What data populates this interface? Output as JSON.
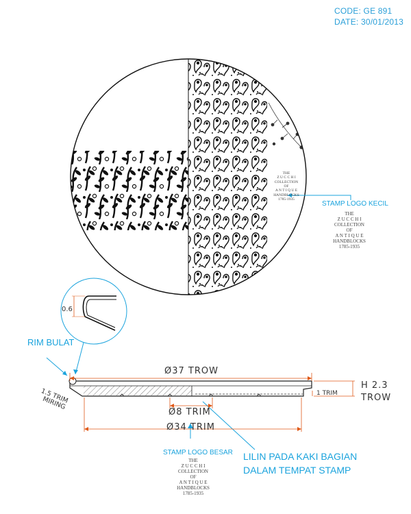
{
  "header": {
    "code": "CODE: GE 891",
    "date": "DATE: 30/01/2013"
  },
  "logo": {
    "the": "THE",
    "zucchi": "Z U C C H I",
    "collection": "COLLECTION",
    "of": "OF",
    "antique": "A N T I Q U E",
    "handblocks": "HANDBLOCKS",
    "years": "1785-1935"
  },
  "labels": {
    "stamp_logo_kecil": "STAMP LOGO KECIL",
    "stamp_logo_besar": "STAMP LOGO BESAR",
    "rim_bulat": "RIM BULAT",
    "lilin_line1": "LILIN PADA KAKI BAGIAN",
    "lilin_line2": "DALAM TEMPAT STAMP"
  },
  "dimensions": {
    "detail_thickness": "0.6",
    "trim_miring": "1.5 TRIM\nMIRING",
    "dia_37": "Ø37 TROW",
    "dia_8": "Ø8 TRIM",
    "dia_34": "Ø34 TRIM",
    "trim_1": "1 TRIM",
    "height_line1": "H 2.3",
    "height_line2": "TROW"
  },
  "colors": {
    "accent": "#1aa3dd",
    "line": "#222222",
    "dim_line": "#e05a1a"
  }
}
